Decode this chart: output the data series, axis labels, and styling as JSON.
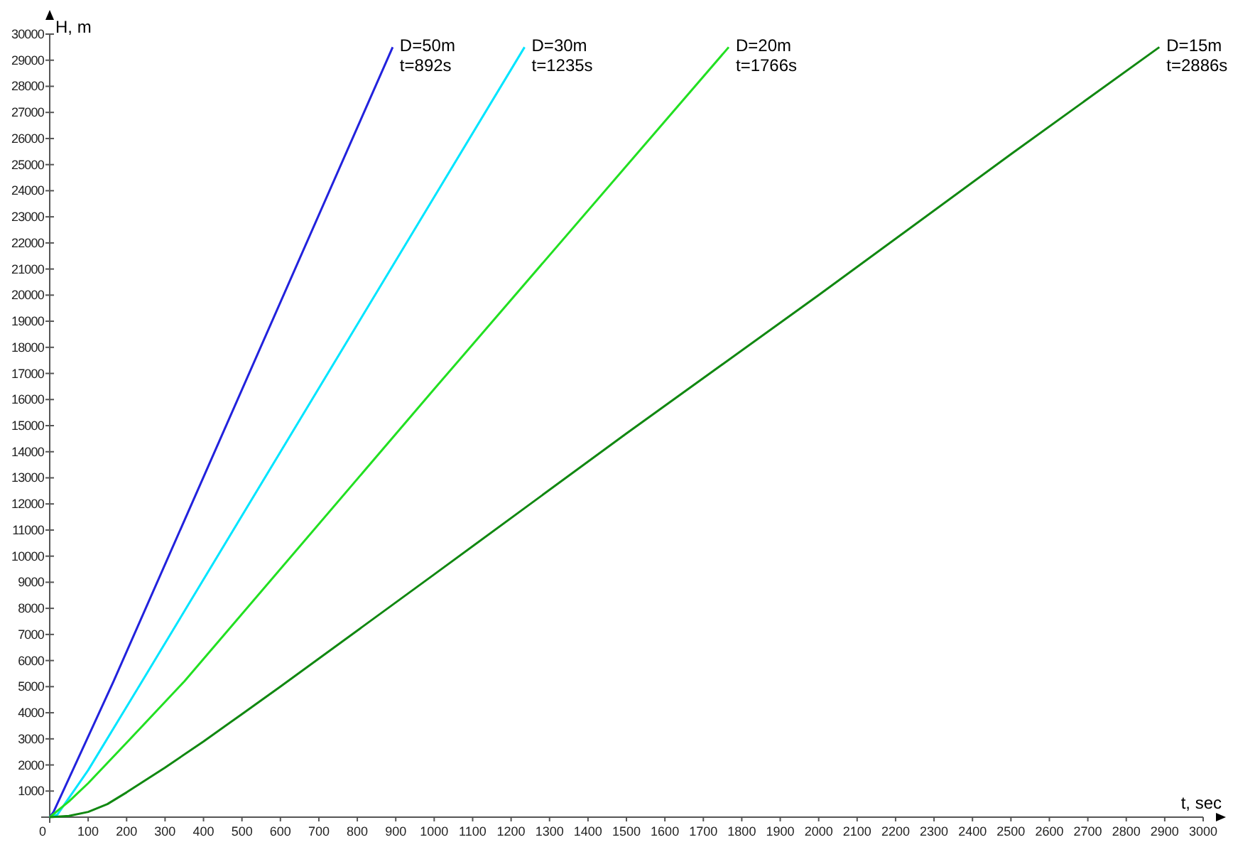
{
  "chart_data": {
    "type": "line",
    "xlabel": "t, sec",
    "ylabel": "H, m",
    "xlim": [
      0,
      3000
    ],
    "ylim": [
      0,
      30000
    ],
    "xticks": [
      0,
      100,
      200,
      300,
      400,
      500,
      600,
      700,
      800,
      900,
      1000,
      1100,
      1200,
      1300,
      1400,
      1500,
      1600,
      1700,
      1800,
      1900,
      2000,
      2100,
      2200,
      2300,
      2400,
      2500,
      2600,
      2700,
      2800,
      2900,
      3000
    ],
    "yticks": [
      {
        "value": 0,
        "label": null
      },
      1000,
      2000,
      3000,
      4000,
      5000,
      6000,
      7000,
      8000,
      9000,
      10000,
      11000,
      12000,
      13000,
      14000,
      15000,
      16000,
      17000,
      18000,
      19000,
      20000,
      21000,
      22000,
      23000,
      24000,
      25000,
      26000,
      27000,
      28000,
      29000,
      30000
    ],
    "grid": false,
    "marker": "none",
    "line_style": "solid",
    "series": [
      {
        "name": "D=50m",
        "color": "#2222dd",
        "x": [
          0,
          10,
          166,
          892
        ],
        "values": [
          0,
          200,
          5200,
          29500
        ]
      },
      {
        "name": "D=30m",
        "color": "#00e5ff",
        "x": [
          0,
          20,
          100,
          240,
          1235
        ],
        "values": [
          0,
          100,
          1800,
          5200,
          29500
        ]
      },
      {
        "name": "D=20m",
        "color": "#22e022",
        "x": [
          0,
          50,
          100,
          200,
          350,
          1000,
          1766
        ],
        "values": [
          0,
          600,
          1300,
          2850,
          5200,
          16400,
          29500
        ]
      },
      {
        "name": "D=15m",
        "color": "#118811",
        "x": [
          0,
          50,
          100,
          150,
          200,
          300,
          400,
          500,
          600,
          1000,
          1500,
          2000,
          2500,
          2886
        ],
        "values": [
          0,
          50,
          200,
          500,
          950,
          1900,
          2900,
          3950,
          5000,
          9300,
          14700,
          20000,
          25400,
          29500
        ]
      }
    ],
    "annotations": [
      {
        "text": "t=892s",
        "x": 892,
        "y": 29500
      },
      {
        "text": "t=1235s",
        "x": 1235,
        "y": 29500
      },
      {
        "text": "t=1766s",
        "x": 1766,
        "y": 29500
      },
      {
        "text": "t=2886s",
        "x": 2886,
        "y": 29500
      }
    ]
  }
}
